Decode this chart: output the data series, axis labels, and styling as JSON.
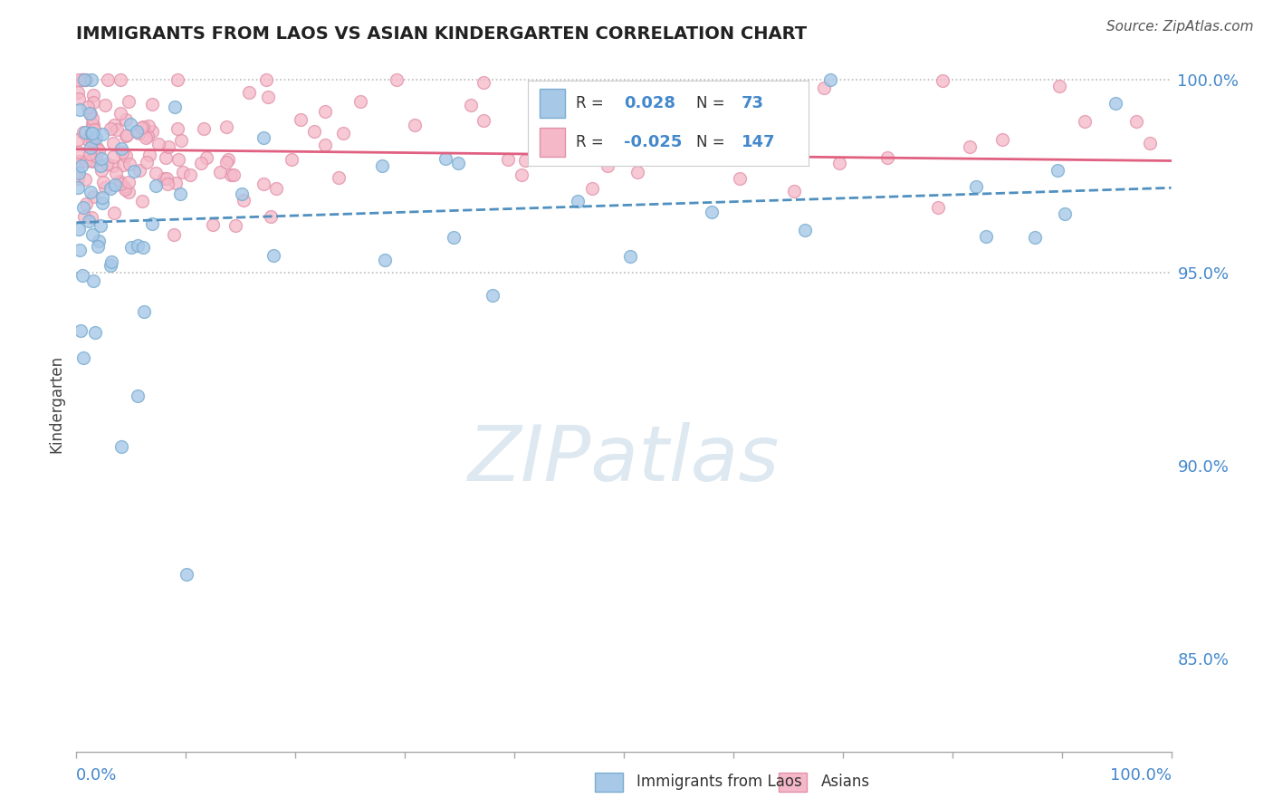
{
  "title": "IMMIGRANTS FROM LAOS VS ASIAN KINDERGARTEN CORRELATION CHART",
  "source": "Source: ZipAtlas.com",
  "ylabel": "Kindergarten",
  "legend_label1": "Immigrants from Laos",
  "legend_label2": "Asians",
  "R1": 0.028,
  "N1": 73,
  "R2": -0.025,
  "N2": 147,
  "color_blue": "#a8c8e8",
  "color_blue_edge": "#7aadd0",
  "color_pink": "#f5b8c8",
  "color_pink_edge": "#e090a8",
  "color_blue_line": "#5090c0",
  "color_pink_line": "#e06080",
  "color_title": "#222222",
  "color_axis": "#4488cc",
  "background": "#ffffff",
  "xlim": [
    0.0,
    1.0
  ],
  "ylim": [
    0.826,
    1.006
  ],
  "yticks": [
    0.85,
    0.9,
    0.95,
    1.0
  ],
  "ytick_labels": [
    "85.0%",
    "90.0%",
    "95.0%",
    "100.0%"
  ],
  "hlines": [
    1.0,
    0.95
  ],
  "watermark_text": "ZIPatlas",
  "watermark_color": "#dde8f0"
}
